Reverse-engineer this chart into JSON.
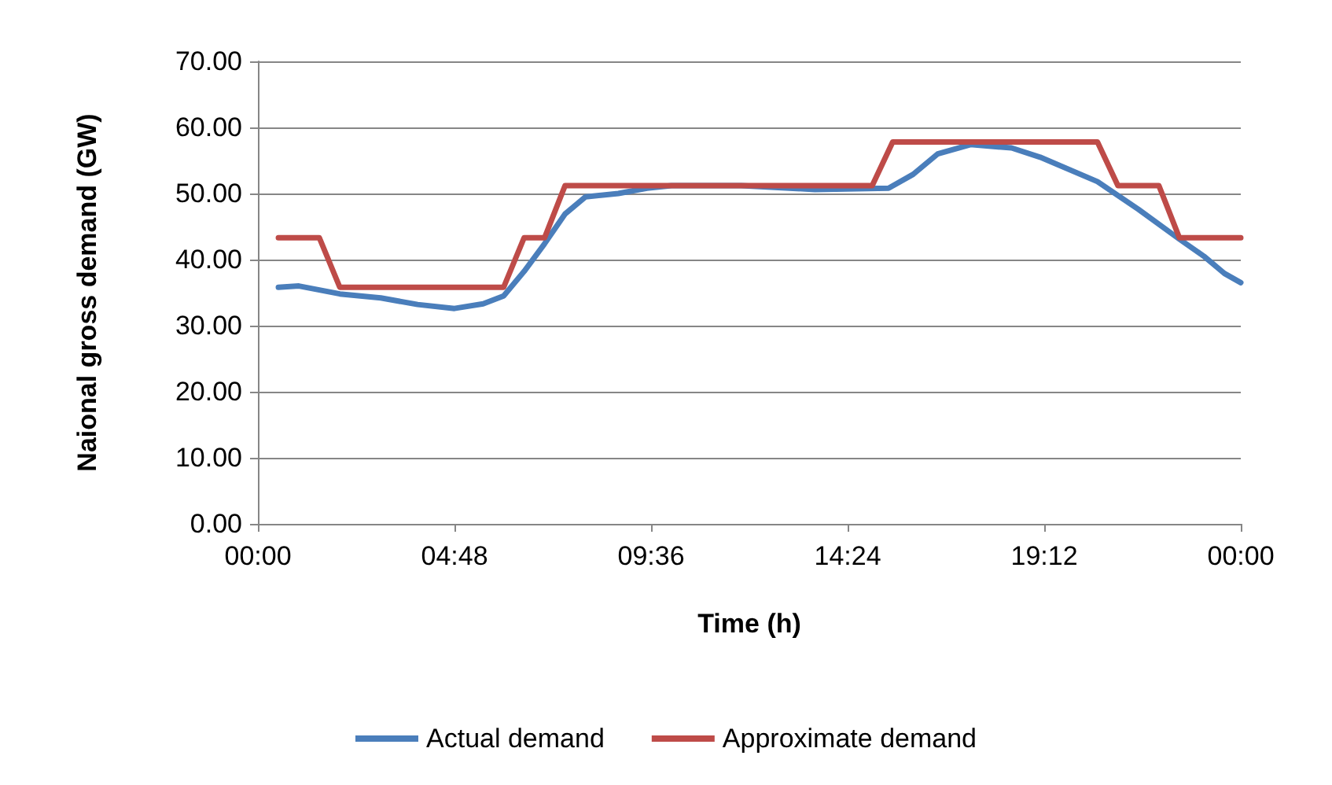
{
  "chart_data": {
    "type": "line",
    "xlabel": "Time (h)",
    "ylabel": "Naional gross demand (GW)",
    "xlim": [
      0,
      24
    ],
    "xticks": [
      {
        "value": 0,
        "label": "00:00"
      },
      {
        "value": 4.8,
        "label": "04:48"
      },
      {
        "value": 9.6,
        "label": "09:36"
      },
      {
        "value": 14.4,
        "label": "14:24"
      },
      {
        "value": 19.2,
        "label": "19:12"
      },
      {
        "value": 24,
        "label": "00:00"
      }
    ],
    "ylim": [
      0,
      70
    ],
    "yticks": [
      {
        "value": 0,
        "label": "0.00"
      },
      {
        "value": 10,
        "label": "10.00"
      },
      {
        "value": 20,
        "label": "20.00"
      },
      {
        "value": 30,
        "label": "30.00"
      },
      {
        "value": 40,
        "label": "40.00"
      },
      {
        "value": 50,
        "label": "50.00"
      },
      {
        "value": 60,
        "label": "60.00"
      },
      {
        "value": 70,
        "label": "70.00"
      }
    ],
    "grid": "y",
    "legend": "bottom",
    "marker": "none",
    "line_style": "solid",
    "series": [
      {
        "name": "Actual demand",
        "color": "#4a7ebb",
        "x": [
          0.5,
          1,
          2,
          3,
          3.9,
          4.8,
          5.5,
          6,
          6.5,
          7,
          7.5,
          8,
          8.8,
          9.5,
          10.1,
          11.8,
          13.6,
          15.4,
          16,
          16.6,
          17.4,
          18.4,
          19.1,
          20.5,
          21.5,
          22.5,
          23.1,
          23.6,
          24
        ],
        "values": [
          35.8,
          36.0,
          34.8,
          34.2,
          33.2,
          32.6,
          33.3,
          34.5,
          38.2,
          42.4,
          46.9,
          49.5,
          50.0,
          50.8,
          51.2,
          51.2,
          50.6,
          50.8,
          52.9,
          56.0,
          57.4,
          56.9,
          55.5,
          51.8,
          47.6,
          43.1,
          40.5,
          37.9,
          36.5
        ]
      },
      {
        "name": "Approximate demand",
        "color": "#be4b48",
        "x": [
          0.5,
          1.5,
          2,
          6,
          6.5,
          7,
          7.5,
          15,
          15.5,
          20.5,
          21,
          22,
          22.5,
          24
        ],
        "values": [
          43.3,
          43.3,
          35.8,
          35.8,
          43.3,
          43.3,
          51.2,
          51.2,
          57.8,
          57.8,
          51.2,
          51.2,
          43.3,
          43.3
        ]
      }
    ]
  }
}
